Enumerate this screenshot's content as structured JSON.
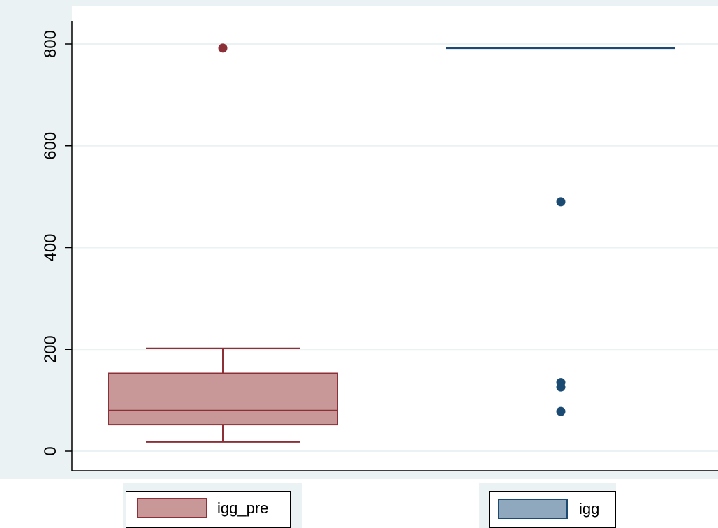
{
  "colors": {
    "background": "#eaf2f3",
    "plot_background": "#ffffff",
    "grid": "#eaf2f3",
    "igg_pre_stroke": "#8c3037",
    "igg_pre_fill": "#c89899",
    "igg_stroke": "#1b4a73",
    "igg_fill": "#90a8bd"
  },
  "chart_data": {
    "type": "box",
    "title": "",
    "xlabel": "",
    "ylabel": "",
    "ylim": [
      -40,
      840
    ],
    "yticks": [
      0,
      200,
      400,
      600,
      800
    ],
    "ytick_labels": [
      "0",
      "200",
      "400",
      "600",
      "800"
    ],
    "grid": true,
    "legend_position": "bottom",
    "series": [
      {
        "name": "igg_pre",
        "whisker_low": 18,
        "q1": 52,
        "median": 80,
        "q3": 153,
        "whisker_high": 202,
        "outliers": [
          792
        ]
      },
      {
        "name": "igg",
        "whisker_low": 792,
        "q1": 792,
        "median": 792,
        "q3": 792,
        "whisker_high": 792,
        "outliers": [
          490,
          135,
          126,
          78
        ]
      }
    ]
  },
  "legend": {
    "items": [
      {
        "label": "igg_pre"
      },
      {
        "label": "igg"
      }
    ]
  }
}
